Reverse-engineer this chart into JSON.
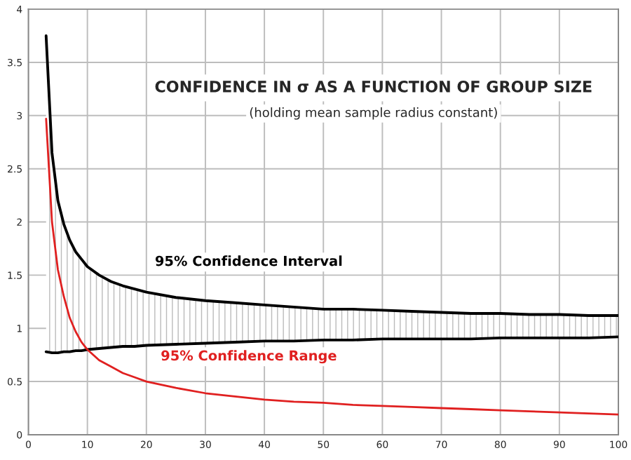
{
  "chart_data": {
    "type": "line",
    "title": "CONFIDENCE IN σ AS A FUNCTION OF GROUP SIZE",
    "subtitle": "(holding mean sample radius constant)",
    "x": [
      3,
      4,
      5,
      6,
      7,
      8,
      9,
      10,
      12,
      14,
      16,
      18,
      20,
      25,
      30,
      35,
      40,
      45,
      50,
      55,
      60,
      65,
      70,
      75,
      80,
      85,
      90,
      95,
      100
    ],
    "series": [
      {
        "name": "95% Confidence Interval",
        "color": "#000000",
        "values": [
          3.75,
          2.65,
          2.2,
          1.98,
          1.83,
          1.72,
          1.65,
          1.58,
          1.5,
          1.44,
          1.4,
          1.37,
          1.34,
          1.29,
          1.26,
          1.24,
          1.22,
          1.2,
          1.18,
          1.18,
          1.17,
          1.16,
          1.15,
          1.14,
          1.14,
          1.13,
          1.13,
          1.12,
          1.12
        ],
        "lower": [
          0.78,
          0.77,
          0.77,
          0.78,
          0.78,
          0.79,
          0.79,
          0.8,
          0.81,
          0.82,
          0.83,
          0.83,
          0.84,
          0.85,
          0.86,
          0.87,
          0.88,
          0.88,
          0.89,
          0.89,
          0.9,
          0.9,
          0.9,
          0.9,
          0.91,
          0.91,
          0.91,
          0.91,
          0.92
        ],
        "upper": [
          3.75,
          2.65,
          2.2,
          1.98,
          1.83,
          1.72,
          1.65,
          1.58,
          1.5,
          1.44,
          1.4,
          1.37,
          1.34,
          1.29,
          1.26,
          1.24,
          1.22,
          1.2,
          1.18,
          1.18,
          1.17,
          1.16,
          1.15,
          1.14,
          1.14,
          1.13,
          1.13,
          1.12,
          1.12
        ]
      },
      {
        "color": "#000000",
        "values": [
          0.78,
          0.77,
          0.77,
          0.78,
          0.78,
          0.79,
          0.79,
          0.8,
          0.81,
          0.82,
          0.83,
          0.83,
          0.84,
          0.85,
          0.86,
          0.87,
          0.88,
          0.88,
          0.89,
          0.89,
          0.9,
          0.9,
          0.9,
          0.9,
          0.91,
          0.91,
          0.91,
          0.91,
          0.92
        ]
      },
      {
        "name": "95% Confidence Range",
        "color": "#e02020",
        "values": [
          2.97,
          2.0,
          1.55,
          1.3,
          1.1,
          0.97,
          0.87,
          0.8,
          0.7,
          0.64,
          0.58,
          0.54,
          0.5,
          0.44,
          0.39,
          0.36,
          0.33,
          0.31,
          0.3,
          0.28,
          0.27,
          0.26,
          0.25,
          0.24,
          0.23,
          0.22,
          0.21,
          0.2,
          0.19
        ]
      }
    ],
    "xlim": [
      0,
      100
    ],
    "xticks": [
      0,
      10,
      20,
      30,
      40,
      50,
      60,
      70,
      80,
      90,
      100
    ],
    "ylim": [
      0,
      4
    ],
    "yticks": [
      0,
      0.5,
      1,
      1.5,
      2,
      2.5,
      3,
      3.5,
      4
    ],
    "grid": true,
    "legend": false,
    "marker": "none",
    "line_style": "solid"
  }
}
